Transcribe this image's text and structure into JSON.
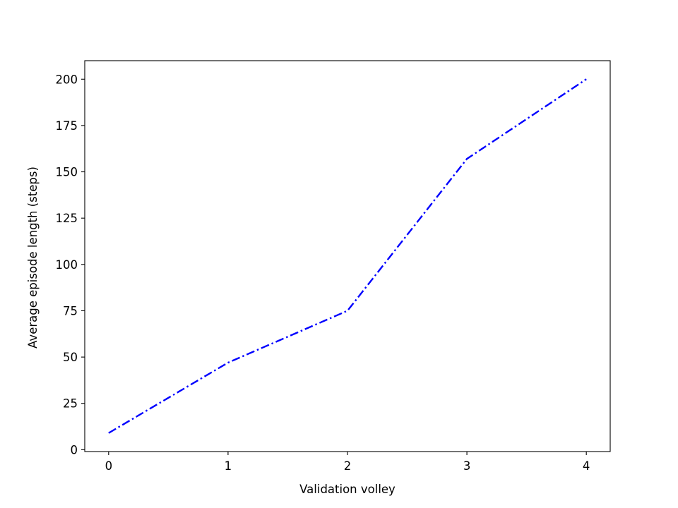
{
  "chart_data": {
    "type": "line",
    "title": "",
    "xlabel": "Validation volley",
    "ylabel": "Average episode length (steps)",
    "x": [
      0,
      1,
      2,
      3,
      4
    ],
    "series": [
      {
        "values": [
          9,
          47,
          75,
          157,
          200
        ],
        "color": "#0000ff",
        "line_style": "dash-dot"
      }
    ],
    "xlim": [
      -0.2,
      4.2
    ],
    "ylim": [
      -1,
      210
    ],
    "xticks": [
      0,
      1,
      2,
      3,
      4
    ],
    "yticks": [
      0,
      25,
      50,
      75,
      100,
      125,
      150,
      175,
      200
    ],
    "grid": false,
    "legend": "none"
  }
}
